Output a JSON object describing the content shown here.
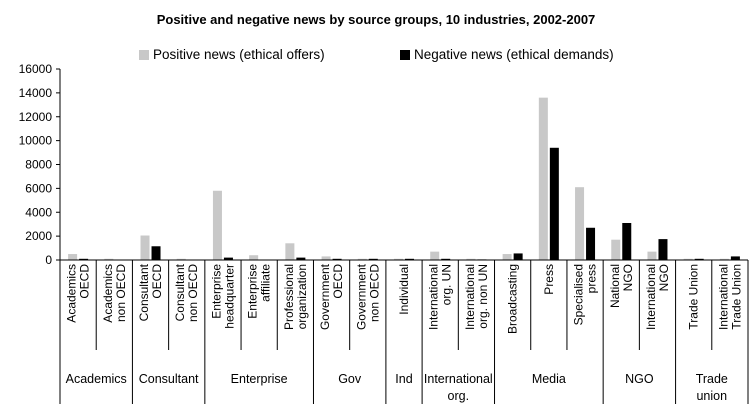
{
  "chart_data": {
    "type": "bar",
    "title": "Positive and negative news by source groups, 10 industries, 2002-2007",
    "ylim": [
      0,
      16000
    ],
    "yticks": [
      "0",
      "2000",
      "4000",
      "6000",
      "8000",
      "10000",
      "12000",
      "14000",
      "16000"
    ],
    "grid": false,
    "legend_position": "top",
    "colors": {
      "positive": "#c8c8c8",
      "negative": "#000000"
    },
    "series": [
      {
        "name": "Positive news (ethical offers)",
        "values": [
          500,
          100,
          2050,
          100,
          5800,
          400,
          1400,
          300,
          100,
          100,
          700,
          100,
          500,
          13600,
          6100,
          1700,
          700,
          100,
          100
        ]
      },
      {
        "name": "Negative news (ethical demands)",
        "values": [
          100,
          0,
          1150,
          0,
          200,
          0,
          200,
          100,
          100,
          100,
          100,
          50,
          550,
          9400,
          2700,
          3100,
          1750,
          100,
          300
        ]
      }
    ],
    "categories": [
      {
        "lines": [
          "Academics",
          "OECD"
        ]
      },
      {
        "lines": [
          "Academics",
          "non OECD"
        ]
      },
      {
        "lines": [
          "Consultant",
          "OECD"
        ]
      },
      {
        "lines": [
          "Consultant",
          "non OECD"
        ]
      },
      {
        "lines": [
          "Enterprise",
          "headquarter"
        ]
      },
      {
        "lines": [
          "Enterprise",
          "affiliate"
        ]
      },
      {
        "lines": [
          "Professional",
          "organization"
        ]
      },
      {
        "lines": [
          "Government",
          "OECD"
        ]
      },
      {
        "lines": [
          "Government",
          "non OECD"
        ]
      },
      {
        "lines": [
          "Individual"
        ]
      },
      {
        "lines": [
          "International",
          "org. UN"
        ]
      },
      {
        "lines": [
          "International",
          "org. non UN"
        ]
      },
      {
        "lines": [
          "Broadcasting"
        ]
      },
      {
        "lines": [
          "Press"
        ]
      },
      {
        "lines": [
          "Specialised",
          "press"
        ]
      },
      {
        "lines": [
          "National",
          "NGO"
        ]
      },
      {
        "lines": [
          "International",
          "NGO"
        ]
      },
      {
        "lines": [
          "Trade Union"
        ]
      },
      {
        "lines": [
          "International",
          "Trade Union"
        ]
      }
    ],
    "groups": [
      {
        "lines": [
          "Academics"
        ],
        "span": [
          0,
          1
        ]
      },
      {
        "lines": [
          "Consultant"
        ],
        "span": [
          2,
          3
        ]
      },
      {
        "lines": [
          "Enterprise"
        ],
        "span": [
          4,
          6
        ]
      },
      {
        "lines": [
          "Gov"
        ],
        "span": [
          7,
          8
        ]
      },
      {
        "lines": [
          "Ind"
        ],
        "span": [
          9,
          9
        ]
      },
      {
        "lines": [
          "International",
          "org."
        ],
        "span": [
          10,
          11
        ]
      },
      {
        "lines": [
          "Media"
        ],
        "span": [
          12,
          14
        ]
      },
      {
        "lines": [
          "NGO"
        ],
        "span": [
          15,
          16
        ]
      },
      {
        "lines": [
          "Trade",
          "union"
        ],
        "span": [
          17,
          18
        ]
      }
    ]
  }
}
